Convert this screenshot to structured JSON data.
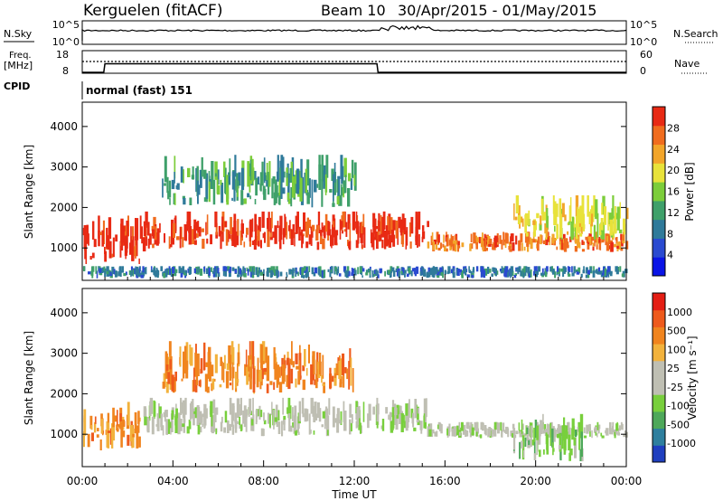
{
  "header": {
    "station": "Kerguelen (fitACF)",
    "beam": "Beam 10",
    "date_range": "30/Apr/2015 - 01/May/2015"
  },
  "nsky_panel": {
    "left_label": "N.Sky",
    "right_label": "N.Search",
    "left_ticks": [
      "10^5",
      "10^0"
    ],
    "right_ticks": [
      "10^5",
      "10^0"
    ]
  },
  "freq_panel": {
    "left_label_1": "Freq.",
    "left_label_2": "[MHz]",
    "right_label": "Nave",
    "left_ticks": [
      "18",
      "8"
    ],
    "right_ticks": [
      "60",
      "0"
    ],
    "freq_series": [
      [
        0,
        8.5
      ],
      [
        0.95,
        8.5
      ],
      [
        1.0,
        13.5
      ],
      [
        13.0,
        13.5
      ],
      [
        13.05,
        8.5
      ],
      [
        24,
        8.5
      ]
    ]
  },
  "cpid": {
    "label": "CPID",
    "mode": "normal (fast) 151"
  },
  "chart_data": [
    {
      "type": "heatmap",
      "name": "power",
      "ylabel": "Slant Range [km]",
      "yticks": [
        "4000",
        "3000",
        "2000",
        "1000"
      ],
      "ylim": [
        200,
        4600
      ],
      "xlim": [
        0,
        24
      ],
      "colorbar_label": "Power [dB]",
      "colorbar_ticks": [
        "28",
        "24",
        "20",
        "16",
        "12",
        "8",
        "4"
      ],
      "colors": [
        "#0a14e6",
        "#2a4ad0",
        "#2f7a9a",
        "#3fa06a",
        "#7ccd3a",
        "#e8e23a",
        "#f2a52a",
        "#f06c1e",
        "#e82a14"
      ],
      "regions": [
        {
          "x0": 0,
          "x1": 2.7,
          "r0": 600,
          "r1": 1800,
          "c": 8
        },
        {
          "x0": 2.7,
          "x1": 15.2,
          "r0": 950,
          "r1": 1900,
          "c": 8
        },
        {
          "x0": 15.2,
          "x1": 24,
          "r0": 900,
          "r1": 1400,
          "c": 7
        },
        {
          "x0": 3.5,
          "x1": 12,
          "r0": 2000,
          "r1": 3300,
          "c": 3
        },
        {
          "x0": 19,
          "x1": 24,
          "r0": 1200,
          "r1": 2300,
          "c": 5
        },
        {
          "x0": 0,
          "x1": 24,
          "r0": 250,
          "r1": 550,
          "c": 2
        }
      ]
    },
    {
      "type": "heatmap",
      "name": "velocity",
      "ylabel": "Slant Range [km]",
      "yticks": [
        "4000",
        "3000",
        "2000",
        "1000"
      ],
      "ylim": [
        200,
        4600
      ],
      "xlim": [
        0,
        24
      ],
      "xticks": [
        "00:00",
        "04:00",
        "08:00",
        "12:00",
        "16:00",
        "20:00",
        "00:00"
      ],
      "xlabel": "Time UT",
      "colorbar_label": "Velocity [m s⁻¹]",
      "colorbar_ticks": [
        "1000",
        "500",
        "100",
        "25",
        "-25",
        "-100",
        "-500",
        "-1000"
      ],
      "colors": [
        "#1f3fbf",
        "#2e7f9e",
        "#4ea85a",
        "#78cf3c",
        "#bfbfb3",
        "#bfbfb3",
        "#f2b23c",
        "#f0841e",
        "#ee5a1c",
        "#e41e14"
      ],
      "regions": [
        {
          "x0": 0,
          "x1": 2.5,
          "r0": 600,
          "r1": 1800,
          "c": 7
        },
        {
          "x0": 2.7,
          "x1": 15.2,
          "r0": 950,
          "r1": 1900,
          "c": 4
        },
        {
          "x0": 15.2,
          "x1": 24,
          "r0": 900,
          "r1": 1300,
          "c": 4
        },
        {
          "x0": 3.5,
          "x1": 12,
          "r0": 2000,
          "r1": 3300,
          "c": 7
        },
        {
          "x0": 19,
          "x1": 22,
          "r0": 300,
          "r1": 1500,
          "c": 3
        }
      ]
    }
  ]
}
